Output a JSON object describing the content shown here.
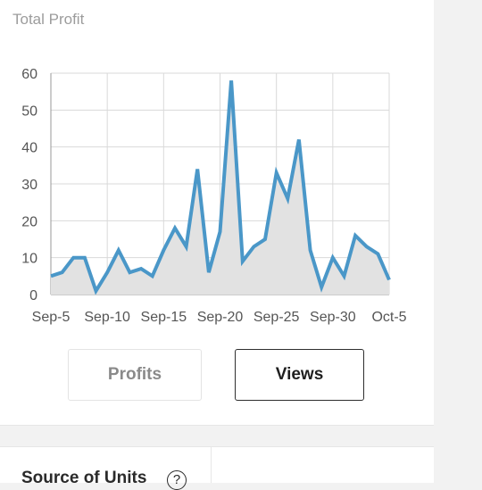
{
  "card": {
    "title": "Total Profit"
  },
  "toggle": {
    "profits_label": "Profits",
    "views_label": "Views",
    "selected": "Views"
  },
  "source": {
    "title": "Source of Units",
    "help_icon": "?"
  },
  "colors": {
    "line": "#4a97c8",
    "fill": "#e2e2e2",
    "grid": "#d9d9d9"
  },
  "chart_data": {
    "type": "area",
    "ylim": [
      0,
      60
    ],
    "yticks": [
      0,
      10,
      20,
      30,
      40,
      50,
      60
    ],
    "x_tick_labels": [
      "Sep-5",
      "Sep-10",
      "Sep-15",
      "Sep-20",
      "Sep-25",
      "Sep-30",
      "Oct-5"
    ],
    "x": [
      "Sep-5",
      "Sep-6",
      "Sep-7",
      "Sep-8",
      "Sep-9",
      "Sep-10",
      "Sep-11",
      "Sep-12",
      "Sep-13",
      "Sep-14",
      "Sep-15",
      "Sep-16",
      "Sep-17",
      "Sep-18",
      "Sep-19",
      "Sep-20",
      "Sep-21",
      "Sep-22",
      "Sep-23",
      "Sep-24",
      "Sep-25",
      "Sep-26",
      "Sep-27",
      "Sep-28",
      "Sep-29",
      "Sep-30",
      "Oct-1",
      "Oct-2",
      "Oct-3",
      "Oct-4",
      "Oct-5"
    ],
    "values": [
      5,
      6,
      10,
      10,
      1,
      6,
      12,
      6,
      7,
      5,
      12,
      18,
      13,
      34,
      6,
      17,
      58,
      9,
      13,
      15,
      33,
      26,
      42,
      12,
      2,
      10,
      5,
      16,
      13,
      11,
      4
    ],
    "grid": true
  }
}
